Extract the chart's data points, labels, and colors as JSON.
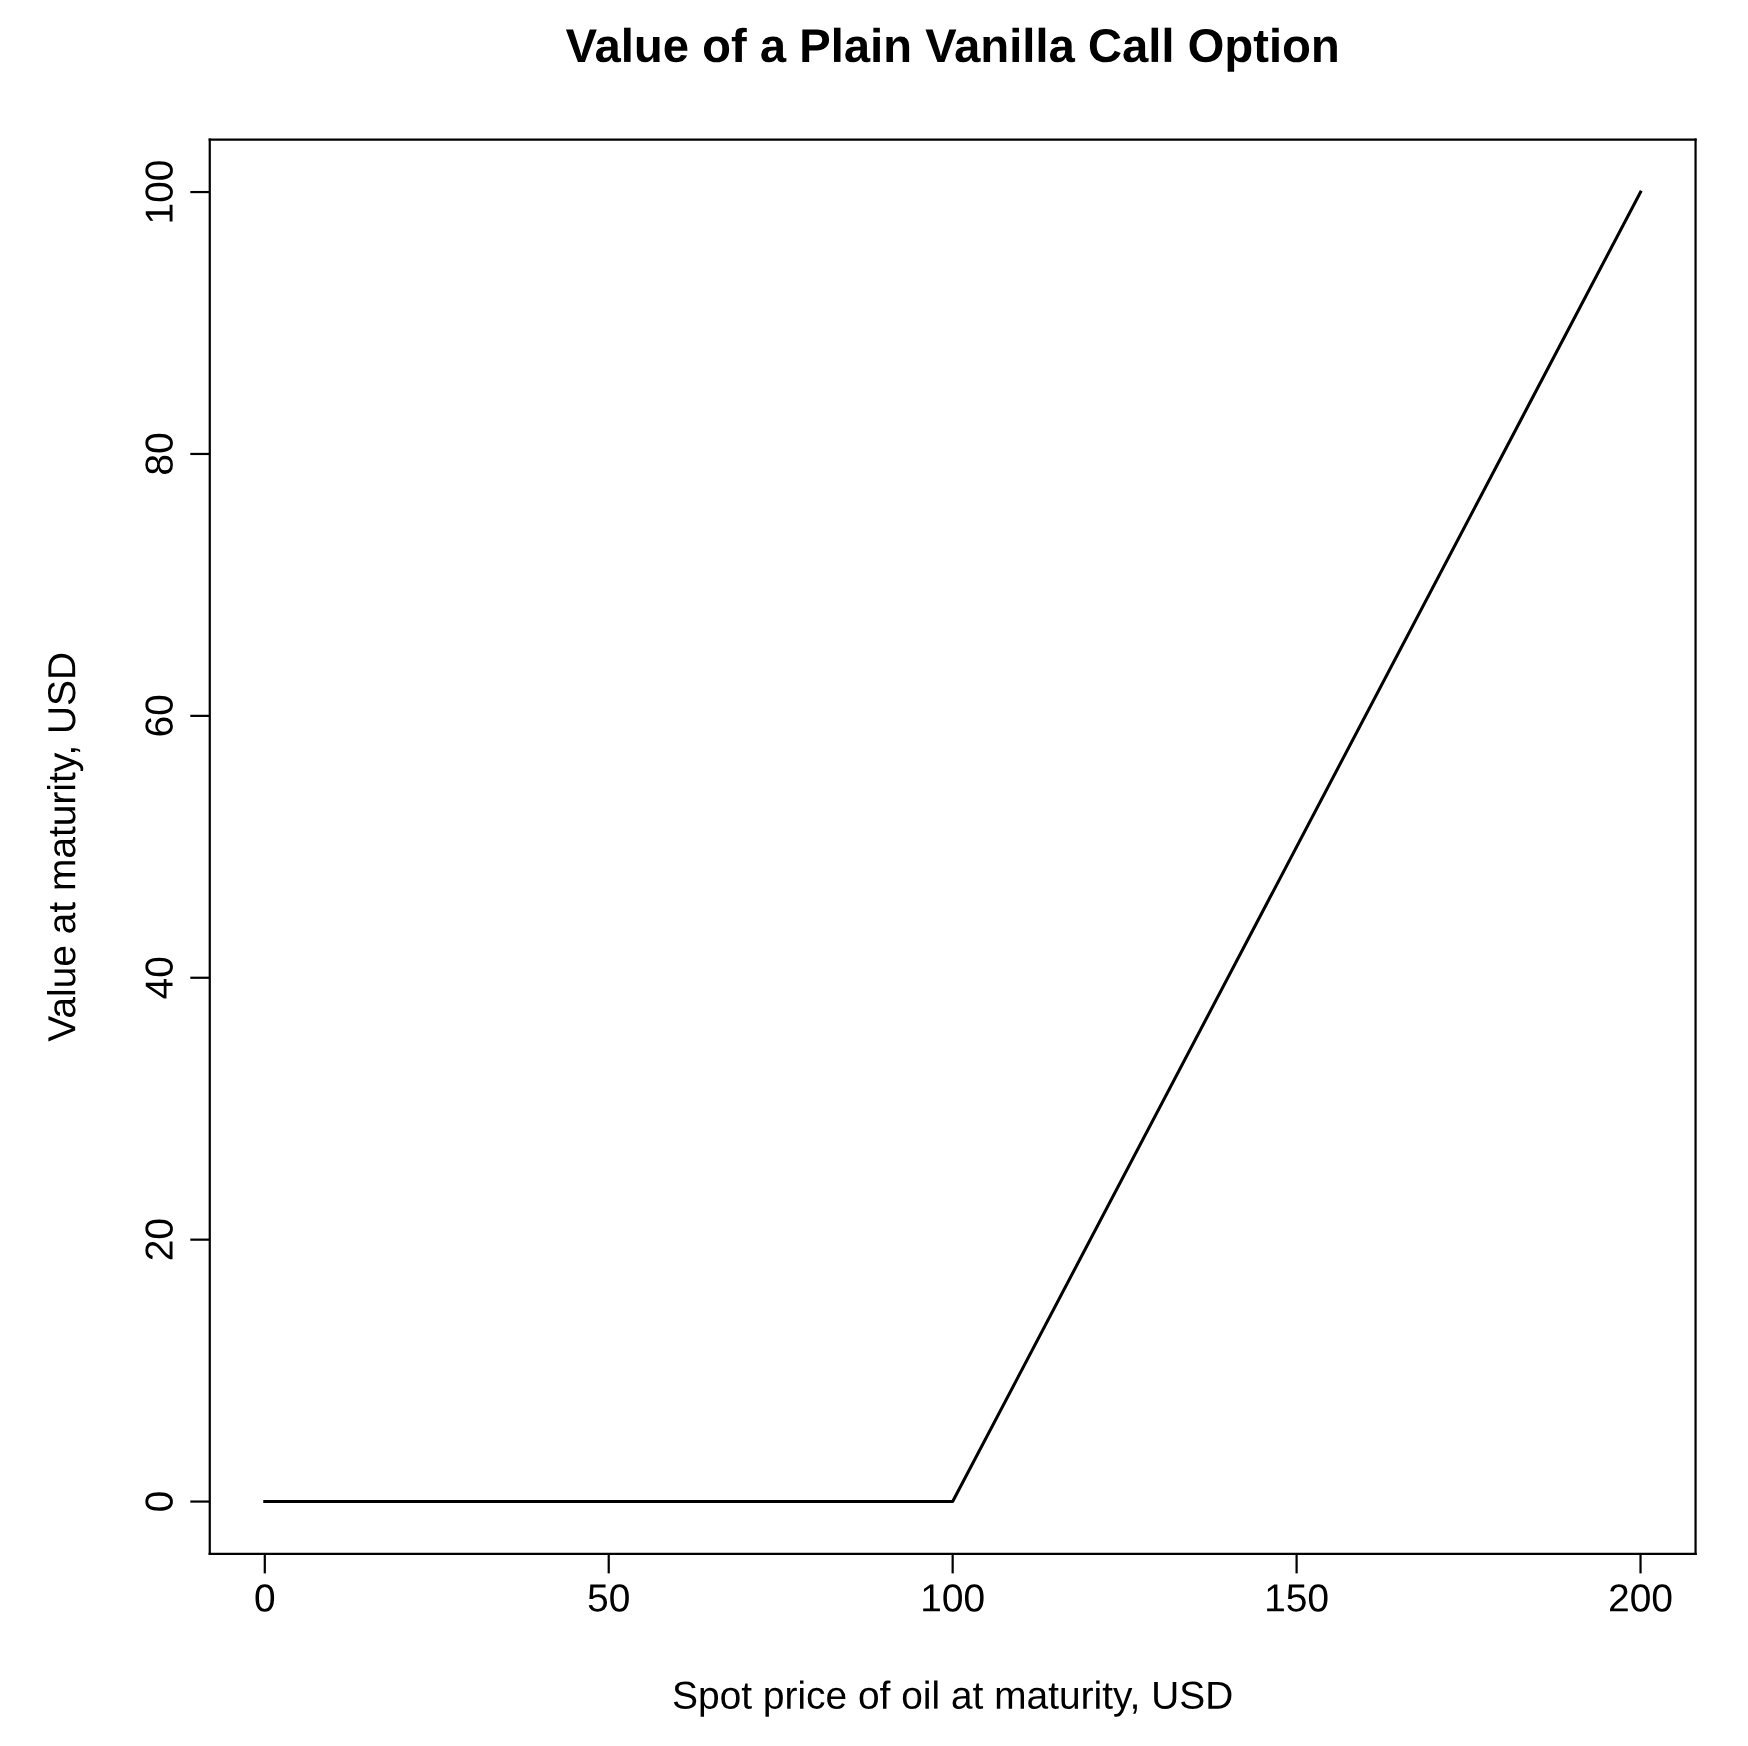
{
  "chart_data": {
    "type": "line",
    "title": "Value of a Plain Vanilla Call Option",
    "xlabel": "Spot price of oil at maturity, USD",
    "ylabel": "Value at maturity, USD",
    "x": [
      0,
      100,
      200
    ],
    "series": [
      {
        "color": "#000000",
        "values": [
          0,
          0,
          100
        ]
      }
    ],
    "xlim": [
      -8,
      208
    ],
    "ylim": [
      -4,
      104
    ],
    "xticks": [
      0,
      50,
      100,
      150,
      200
    ],
    "yticks": [
      0,
      20,
      40,
      60,
      80,
      100
    ],
    "grid": false,
    "legend": false,
    "marker": "none",
    "line_style": "solid"
  }
}
